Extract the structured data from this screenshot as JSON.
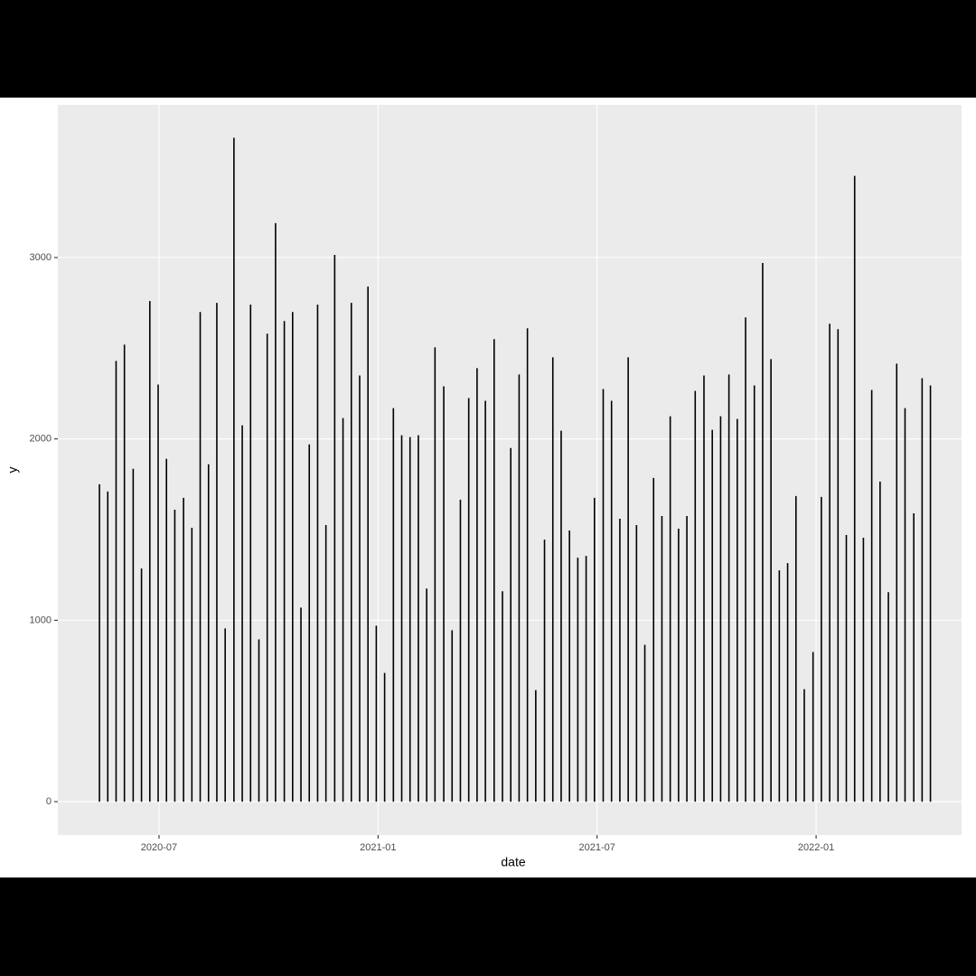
{
  "chart_data": {
    "type": "bar",
    "x_label": "date",
    "y_label": "y",
    "color": "#000000",
    "grid": true,
    "x": [
      2020.364,
      2020.383,
      2020.402,
      2020.421,
      2020.441,
      2020.46,
      2020.479,
      2020.498,
      2020.517,
      2020.536,
      2020.556,
      2020.575,
      2020.594,
      2020.613,
      2020.632,
      2020.651,
      2020.671,
      2020.69,
      2020.709,
      2020.728,
      2020.747,
      2020.766,
      2020.786,
      2020.805,
      2020.824,
      2020.843,
      2020.862,
      2020.881,
      2020.901,
      2020.92,
      2020.939,
      2020.958,
      2020.977,
      2020.996,
      2021.015,
      2021.035,
      2021.054,
      2021.073,
      2021.092,
      2021.111,
      2021.13,
      2021.15,
      2021.169,
      2021.188,
      2021.207,
      2021.226,
      2021.245,
      2021.265,
      2021.284,
      2021.303,
      2021.322,
      2021.341,
      2021.36,
      2021.38,
      2021.399,
      2021.418,
      2021.437,
      2021.456,
      2021.475,
      2021.494,
      2021.514,
      2021.533,
      2021.552,
      2021.571,
      2021.59,
      2021.609,
      2021.629,
      2021.648,
      2021.667,
      2021.686,
      2021.705,
      2021.724,
      2021.744,
      2021.763,
      2021.782,
      2021.801,
      2021.82,
      2021.839,
      2021.859,
      2021.878,
      2021.897,
      2021.916,
      2021.935,
      2021.954,
      2021.973,
      2021.993,
      2022.012,
      2022.031,
      2022.05,
      2022.069,
      2022.088,
      2022.108,
      2022.127,
      2022.146,
      2022.165,
      2022.184,
      2022.203,
      2022.223,
      2022.242,
      2022.261
    ],
    "values": [
      1750,
      1710,
      2430,
      2520,
      1835,
      1285,
      2760,
      2300,
      1890,
      1610,
      1675,
      1510,
      2700,
      1860,
      2750,
      955,
      3660,
      2075,
      2740,
      895,
      2580,
      3190,
      2650,
      2700,
      1070,
      1970,
      2740,
      1525,
      3015,
      2115,
      2750,
      2350,
      2840,
      970,
      710,
      2170,
      2020,
      2010,
      2020,
      1175,
      2505,
      2290,
      945,
      1665,
      2225,
      2390,
      2210,
      2550,
      1160,
      1950,
      2355,
      2610,
      615,
      1445,
      2450,
      2045,
      1495,
      1345,
      1355,
      1675,
      2275,
      2210,
      1560,
      2450,
      1525,
      865,
      1785,
      1575,
      2125,
      1505,
      1575,
      2265,
      2350,
      2050,
      2125,
      2355,
      2110,
      2670,
      2295,
      2970,
      2440,
      1275,
      1315,
      1685,
      620,
      825,
      1680,
      2635,
      2605,
      1470,
      3450,
      1455,
      2270,
      1765,
      1155,
      2415,
      2170,
      1590,
      2335,
      2295
    ],
    "xlim": [
      2020.269,
      2022.332
    ],
    "xticks": [
      {
        "value": 2020.5,
        "label": "2020-07"
      },
      {
        "value": 2021.0,
        "label": "2021-01"
      },
      {
        "value": 2021.5,
        "label": "2021-07"
      },
      {
        "value": 2022.0,
        "label": "2022-01"
      }
    ],
    "ylim": [
      -184,
      3842
    ],
    "yticks": [
      0,
      1000,
      2000,
      3000
    ]
  }
}
